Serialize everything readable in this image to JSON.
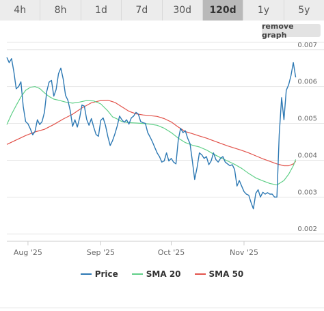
{
  "tabs": [
    {
      "label": "4h",
      "active": false
    },
    {
      "label": "8h",
      "active": false
    },
    {
      "label": "1d",
      "active": false
    },
    {
      "label": "7d",
      "active": false
    },
    {
      "label": "30d",
      "active": false
    },
    {
      "label": "120d",
      "active": true
    },
    {
      "label": "1y",
      "active": false
    },
    {
      "label": "5y",
      "active": false
    }
  ],
  "remove_graph_label": "remove graph",
  "colors": {
    "price": "#2c78b3",
    "sma20": "#5fcf87",
    "sma50": "#e2524a",
    "grid": "#e6e6e6",
    "tab_bg": "#ececec",
    "tab_active_bg": "#b9b9b9"
  },
  "chart_data": {
    "type": "line",
    "title": "",
    "xlabel": "",
    "ylabel": "",
    "ylim": [
      0.0018,
      0.0072
    ],
    "xlim": [
      "2025-07-23",
      "2025-11-24"
    ],
    "yticks": [
      0.002,
      0.003,
      0.004,
      0.005,
      0.006,
      0.007
    ],
    "ytick_labels": [
      "0.002",
      "0.003",
      "0.004",
      "0.005",
      "0.006",
      "0.007"
    ],
    "xticks": [
      "2025-08-01",
      "2025-09-01",
      "2025-10-01",
      "2025-11-01"
    ],
    "xtick_labels": [
      "Aug '25",
      "Sep '25",
      "Oct '25",
      "Nov '25"
    ],
    "grid": true,
    "legend_position": "bottom",
    "series": [
      {
        "name": "Price",
        "color": "#2c78b3",
        "points": [
          [
            "2025-07-23",
            0.00679
          ],
          [
            "2025-07-24",
            0.00665
          ],
          [
            "2025-07-25",
            0.00676
          ],
          [
            "2025-07-26",
            0.0064
          ],
          [
            "2025-07-27",
            0.00594
          ],
          [
            "2025-07-28",
            0.006
          ],
          [
            "2025-07-29",
            0.00613
          ],
          [
            "2025-07-30",
            0.00546
          ],
          [
            "2025-07-31",
            0.00505
          ],
          [
            "2025-08-01",
            0.00499
          ],
          [
            "2025-08-02",
            0.00485
          ],
          [
            "2025-08-03",
            0.00469
          ],
          [
            "2025-08-04",
            0.00478
          ],
          [
            "2025-08-05",
            0.0051
          ],
          [
            "2025-08-06",
            0.00497
          ],
          [
            "2025-08-07",
            0.00505
          ],
          [
            "2025-08-08",
            0.0053
          ],
          [
            "2025-08-09",
            0.00587
          ],
          [
            "2025-08-10",
            0.00612
          ],
          [
            "2025-08-11",
            0.00617
          ],
          [
            "2025-08-12",
            0.00574
          ],
          [
            "2025-08-13",
            0.00592
          ],
          [
            "2025-08-14",
            0.00635
          ],
          [
            "2025-08-15",
            0.0065
          ],
          [
            "2025-08-16",
            0.0062
          ],
          [
            "2025-08-17",
            0.00576
          ],
          [
            "2025-08-18",
            0.00563
          ],
          [
            "2025-08-19",
            0.00534
          ],
          [
            "2025-08-20",
            0.00492
          ],
          [
            "2025-08-21",
            0.0051
          ],
          [
            "2025-08-22",
            0.0049
          ],
          [
            "2025-08-23",
            0.00515
          ],
          [
            "2025-08-24",
            0.0055
          ],
          [
            "2025-08-25",
            0.00547
          ],
          [
            "2025-08-26",
            0.00511
          ],
          [
            "2025-08-27",
            0.00495
          ],
          [
            "2025-08-28",
            0.00513
          ],
          [
            "2025-08-29",
            0.0049
          ],
          [
            "2025-08-30",
            0.0047
          ],
          [
            "2025-08-31",
            0.00465
          ],
          [
            "2025-09-01",
            0.00508
          ],
          [
            "2025-09-02",
            0.00515
          ],
          [
            "2025-09-03",
            0.00495
          ],
          [
            "2025-09-04",
            0.00465
          ],
          [
            "2025-09-05",
            0.0044
          ],
          [
            "2025-09-06",
            0.00453
          ],
          [
            "2025-09-07",
            0.00471
          ],
          [
            "2025-09-08",
            0.00493
          ],
          [
            "2025-09-09",
            0.0052
          ],
          [
            "2025-09-10",
            0.0051
          ],
          [
            "2025-09-11",
            0.00503
          ],
          [
            "2025-09-12",
            0.0051
          ],
          [
            "2025-09-13",
            0.00498
          ],
          [
            "2025-09-14",
            0.00515
          ],
          [
            "2025-09-15",
            0.0052
          ],
          [
            "2025-09-16",
            0.0053
          ],
          [
            "2025-09-17",
            0.00525
          ],
          [
            "2025-09-18",
            0.00505
          ],
          [
            "2025-09-19",
            0.00502
          ],
          [
            "2025-09-20",
            0.005
          ],
          [
            "2025-09-21",
            0.00475
          ],
          [
            "2025-09-22",
            0.00463
          ],
          [
            "2025-09-23",
            0.0045
          ],
          [
            "2025-09-24",
            0.00435
          ],
          [
            "2025-09-25",
            0.0042
          ],
          [
            "2025-09-26",
            0.0041
          ],
          [
            "2025-09-27",
            0.00395
          ],
          [
            "2025-09-28",
            0.00398
          ],
          [
            "2025-09-29",
            0.0042
          ],
          [
            "2025-09-30",
            0.00398
          ],
          [
            "2025-10-01",
            0.00405
          ],
          [
            "2025-10-02",
            0.00395
          ],
          [
            "2025-10-03",
            0.0039
          ],
          [
            "2025-10-04",
            0.00455
          ],
          [
            "2025-10-05",
            0.00487
          ],
          [
            "2025-10-06",
            0.00475
          ],
          [
            "2025-10-07",
            0.0048
          ],
          [
            "2025-10-08",
            0.0046
          ],
          [
            "2025-10-09",
            0.00445
          ],
          [
            "2025-10-10",
            0.00398
          ],
          [
            "2025-10-11",
            0.00348
          ],
          [
            "2025-10-12",
            0.0038
          ],
          [
            "2025-10-13",
            0.0042
          ],
          [
            "2025-10-14",
            0.00415
          ],
          [
            "2025-10-15",
            0.00405
          ],
          [
            "2025-10-16",
            0.0041
          ],
          [
            "2025-10-17",
            0.00388
          ],
          [
            "2025-10-18",
            0.00398
          ],
          [
            "2025-10-19",
            0.0042
          ],
          [
            "2025-10-20",
            0.00402
          ],
          [
            "2025-10-21",
            0.00395
          ],
          [
            "2025-10-22",
            0.00405
          ],
          [
            "2025-10-23",
            0.0041
          ],
          [
            "2025-10-24",
            0.00395
          ],
          [
            "2025-10-25",
            0.0039
          ],
          [
            "2025-10-26",
            0.00385
          ],
          [
            "2025-10-27",
            0.00388
          ],
          [
            "2025-10-28",
            0.00375
          ],
          [
            "2025-10-29",
            0.0033
          ],
          [
            "2025-10-30",
            0.00345
          ],
          [
            "2025-10-31",
            0.0033
          ],
          [
            "2025-11-01",
            0.00315
          ],
          [
            "2025-11-02",
            0.00308
          ],
          [
            "2025-11-03",
            0.00305
          ],
          [
            "2025-11-04",
            0.00285
          ],
          [
            "2025-11-05",
            0.00268
          ],
          [
            "2025-11-06",
            0.0031
          ],
          [
            "2025-11-07",
            0.0032
          ],
          [
            "2025-11-08",
            0.003
          ],
          [
            "2025-11-09",
            0.00313
          ],
          [
            "2025-11-10",
            0.00308
          ],
          [
            "2025-11-11",
            0.00312
          ],
          [
            "2025-11-12",
            0.00308
          ],
          [
            "2025-11-13",
            0.00308
          ],
          [
            "2025-11-14",
            0.003
          ],
          [
            "2025-11-15",
            0.003
          ],
          [
            "2025-11-16",
            0.0047
          ],
          [
            "2025-11-17",
            0.0057
          ],
          [
            "2025-11-18",
            0.0051
          ],
          [
            "2025-11-19",
            0.0059
          ],
          [
            "2025-11-20",
            0.00605
          ],
          [
            "2025-11-21",
            0.0063
          ],
          [
            "2025-11-22",
            0.00665
          ],
          [
            "2025-11-23",
            0.00625
          ]
        ]
      },
      {
        "name": "SMA 20",
        "color": "#5fcf87",
        "points": [
          [
            "2025-07-23",
            0.00497
          ],
          [
            "2025-07-25",
            0.00525
          ],
          [
            "2025-07-27",
            0.00549
          ],
          [
            "2025-07-29",
            0.00572
          ],
          [
            "2025-07-31",
            0.0059
          ],
          [
            "2025-08-02",
            0.00598
          ],
          [
            "2025-08-04",
            0.006
          ],
          [
            "2025-08-06",
            0.00595
          ],
          [
            "2025-08-08",
            0.00583
          ],
          [
            "2025-08-10",
            0.00573
          ],
          [
            "2025-08-12",
            0.00566
          ],
          [
            "2025-08-14",
            0.00563
          ],
          [
            "2025-08-17",
            0.00558
          ],
          [
            "2025-08-20",
            0.00555
          ],
          [
            "2025-08-23",
            0.00558
          ],
          [
            "2025-08-26",
            0.00562
          ],
          [
            "2025-08-29",
            0.00561
          ],
          [
            "2025-09-01",
            0.00553
          ],
          [
            "2025-09-04",
            0.00534
          ],
          [
            "2025-09-06",
            0.00518
          ],
          [
            "2025-09-08",
            0.00512
          ],
          [
            "2025-09-10",
            0.00505
          ],
          [
            "2025-09-13",
            0.00502
          ],
          [
            "2025-09-16",
            0.00501
          ],
          [
            "2025-09-19",
            0.005
          ],
          [
            "2025-09-22",
            0.00498
          ],
          [
            "2025-09-25",
            0.00495
          ],
          [
            "2025-09-28",
            0.00487
          ],
          [
            "2025-10-01",
            0.00475
          ],
          [
            "2025-10-04",
            0.0046
          ],
          [
            "2025-10-07",
            0.00448
          ],
          [
            "2025-10-10",
            0.00441
          ],
          [
            "2025-10-13",
            0.00436
          ],
          [
            "2025-10-16",
            0.00428
          ],
          [
            "2025-10-19",
            0.00417
          ],
          [
            "2025-10-22",
            0.00407
          ],
          [
            "2025-10-25",
            0.00398
          ],
          [
            "2025-10-28",
            0.00389
          ],
          [
            "2025-10-31",
            0.00378
          ],
          [
            "2025-11-03",
            0.00364
          ],
          [
            "2025-11-06",
            0.00352
          ],
          [
            "2025-11-09",
            0.00344
          ],
          [
            "2025-11-12",
            0.00337
          ],
          [
            "2025-11-15",
            0.00333
          ],
          [
            "2025-11-18",
            0.00345
          ],
          [
            "2025-11-20",
            0.00362
          ],
          [
            "2025-11-22",
            0.00385
          ],
          [
            "2025-11-23",
            0.00402
          ]
        ]
      },
      {
        "name": "SMA 50",
        "color": "#e2524a",
        "points": [
          [
            "2025-07-23",
            0.00443
          ],
          [
            "2025-07-27",
            0.00455
          ],
          [
            "2025-07-31",
            0.00467
          ],
          [
            "2025-08-04",
            0.00477
          ],
          [
            "2025-08-08",
            0.00484
          ],
          [
            "2025-08-12",
            0.00497
          ],
          [
            "2025-08-16",
            0.00512
          ],
          [
            "2025-08-20",
            0.00525
          ],
          [
            "2025-08-24",
            0.00542
          ],
          [
            "2025-08-28",
            0.00556
          ],
          [
            "2025-09-01",
            0.00562
          ],
          [
            "2025-09-04",
            0.00563
          ],
          [
            "2025-09-07",
            0.00557
          ],
          [
            "2025-09-10",
            0.00545
          ],
          [
            "2025-09-13",
            0.00533
          ],
          [
            "2025-09-16",
            0.00526
          ],
          [
            "2025-09-19",
            0.00523
          ],
          [
            "2025-09-22",
            0.00521
          ],
          [
            "2025-09-25",
            0.00519
          ],
          [
            "2025-09-28",
            0.00513
          ],
          [
            "2025-10-01",
            0.00504
          ],
          [
            "2025-10-04",
            0.0049
          ],
          [
            "2025-10-07",
            0.00478
          ],
          [
            "2025-10-10",
            0.00472
          ],
          [
            "2025-10-13",
            0.00466
          ],
          [
            "2025-10-16",
            0.0046
          ],
          [
            "2025-10-19",
            0.00453
          ],
          [
            "2025-10-22",
            0.00446
          ],
          [
            "2025-10-25",
            0.00439
          ],
          [
            "2025-10-28",
            0.00433
          ],
          [
            "2025-10-31",
            0.00427
          ],
          [
            "2025-11-03",
            0.0042
          ],
          [
            "2025-11-06",
            0.00412
          ],
          [
            "2025-11-09",
            0.00404
          ],
          [
            "2025-11-12",
            0.00397
          ],
          [
            "2025-11-15",
            0.0039
          ],
          [
            "2025-11-18",
            0.00385
          ],
          [
            "2025-11-20",
            0.00385
          ],
          [
            "2025-11-22",
            0.0039
          ],
          [
            "2025-11-23",
            0.00397
          ]
        ]
      }
    ]
  }
}
